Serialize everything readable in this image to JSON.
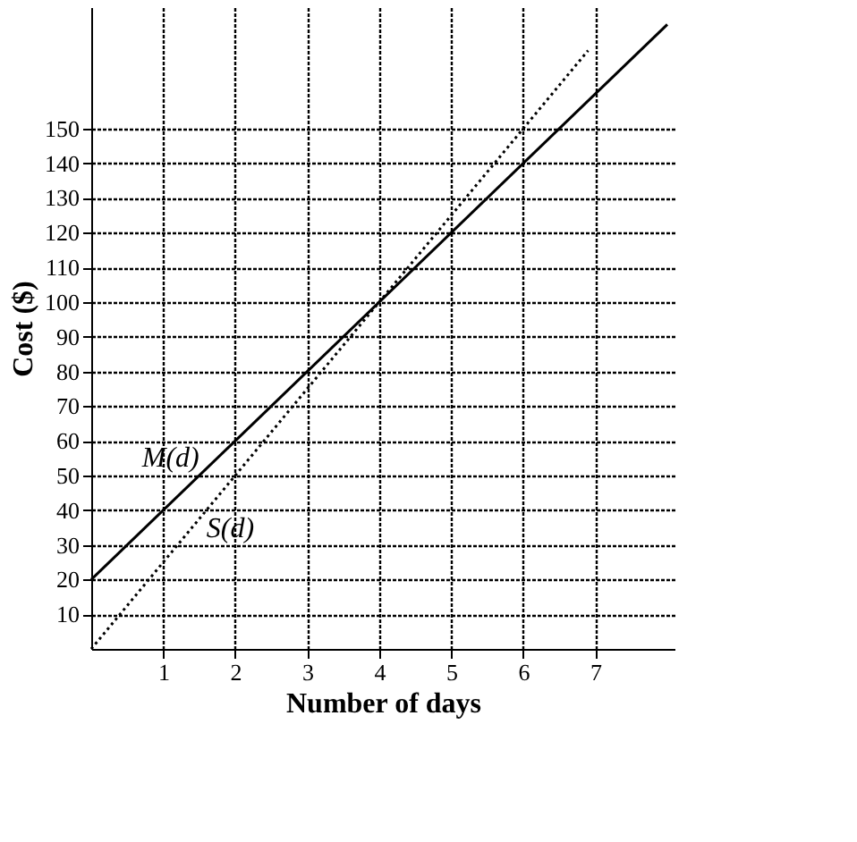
{
  "chart_data": {
    "type": "line",
    "xlabel": "Number of days",
    "ylabel": "Cost ($)",
    "xlim": [
      0,
      8.1
    ],
    "ylim": [
      0,
      185
    ],
    "xticks": [
      1,
      2,
      3,
      4,
      5,
      6,
      7
    ],
    "yticks": [
      10,
      20,
      30,
      40,
      50,
      60,
      70,
      80,
      90,
      100,
      110,
      120,
      130,
      140,
      150
    ],
    "grid": true,
    "series": [
      {
        "color": "#000000",
        "line_style": "solid",
        "x": [
          0,
          8
        ],
        "values": [
          20,
          180
        ]
      },
      {
        "color": "#000000",
        "line_style": "dotted",
        "x": [
          0,
          6.9
        ],
        "values": [
          0,
          172.5
        ]
      }
    ],
    "annotations": [
      {
        "text": "M(d)",
        "x": 1.5,
        "y": 50
      },
      {
        "text": "S(d)",
        "x": 1.6,
        "y": 40
      }
    ]
  }
}
